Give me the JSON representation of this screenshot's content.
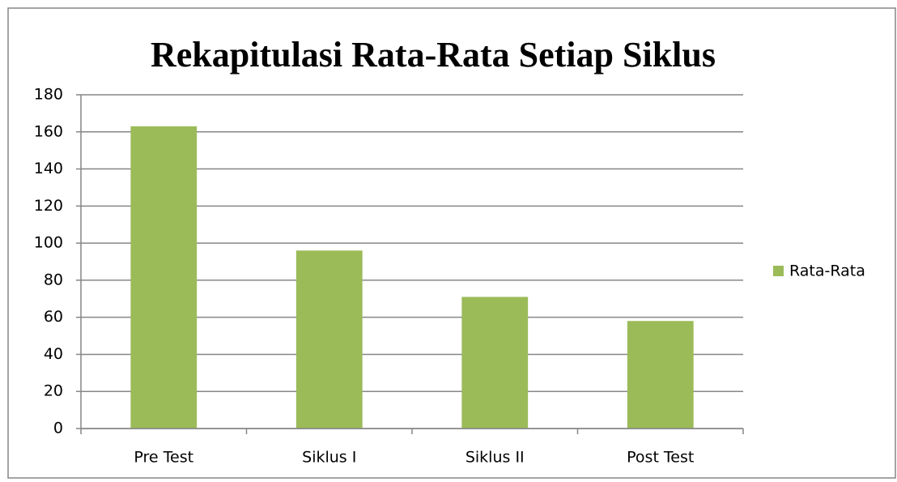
{
  "chart_data": {
    "type": "bar",
    "title": "Rekapitulasi Rata-Rata Setiap Siklus",
    "categories": [
      "Pre Test",
      "Siklus I",
      "Siklus II",
      "Post Test"
    ],
    "series": [
      {
        "name": "Rata-Rata",
        "color": "#9bbb59",
        "values": [
          163,
          96,
          71,
          58
        ]
      }
    ],
    "ylim": [
      0,
      180
    ],
    "yticks": [
      0,
      20,
      40,
      60,
      80,
      100,
      120,
      140,
      160,
      180
    ],
    "grid": true,
    "legend": "right"
  }
}
